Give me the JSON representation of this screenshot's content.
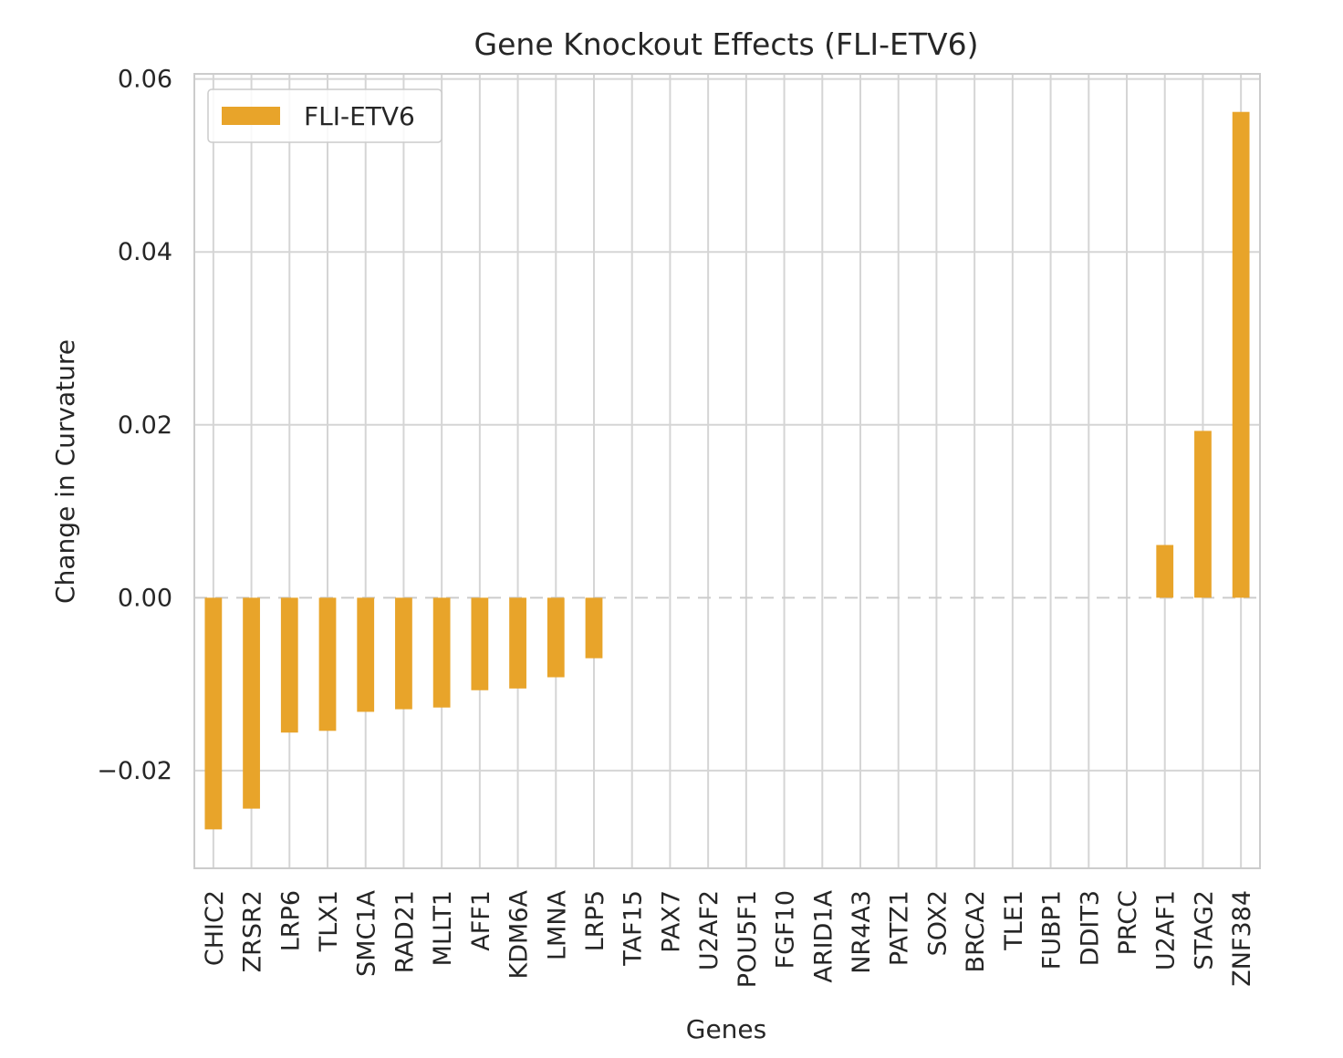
{
  "chart_data": {
    "type": "bar",
    "title": "Gene Knockout Effects (FLI-ETV6)",
    "xlabel": "Genes",
    "ylabel": "Change in Curvature",
    "categories": [
      "CHIC2",
      "ZRSR2",
      "LRP6",
      "TLX1",
      "SMC1A",
      "RAD21",
      "MLLT1",
      "AFF1",
      "KDM6A",
      "LMNA",
      "LRP5",
      "TAF15",
      "PAX7",
      "U2AF2",
      "POU5F1",
      "FGF10",
      "ARID1A",
      "NR4A3",
      "PATZ1",
      "SOX2",
      "BRCA2",
      "TLE1",
      "FUBP1",
      "DDIT3",
      "PRCC",
      "U2AF1",
      "STAG2",
      "ZNF384"
    ],
    "series": [
      {
        "name": "FLI-ETV6",
        "color": "#e8a42a",
        "values": [
          -0.0268,
          -0.0244,
          -0.0156,
          -0.0154,
          -0.0132,
          -0.0129,
          -0.0127,
          -0.0107,
          -0.0105,
          -0.0092,
          -0.007,
          0,
          0,
          0,
          0,
          0,
          0,
          0,
          0,
          0,
          0,
          0,
          0,
          0,
          0,
          0.0061,
          0.0193,
          0.0562
        ]
      }
    ],
    "ylim": [
      -0.0313,
      0.0606
    ],
    "yticks": [
      -0.02,
      0.0,
      0.02,
      0.04,
      0.06
    ],
    "ytick_labels": [
      "−0.02",
      "0.00",
      "0.02",
      "0.04",
      "0.06"
    ],
    "grid": true,
    "legend_position": "top-left",
    "zero_line": "dashed"
  }
}
